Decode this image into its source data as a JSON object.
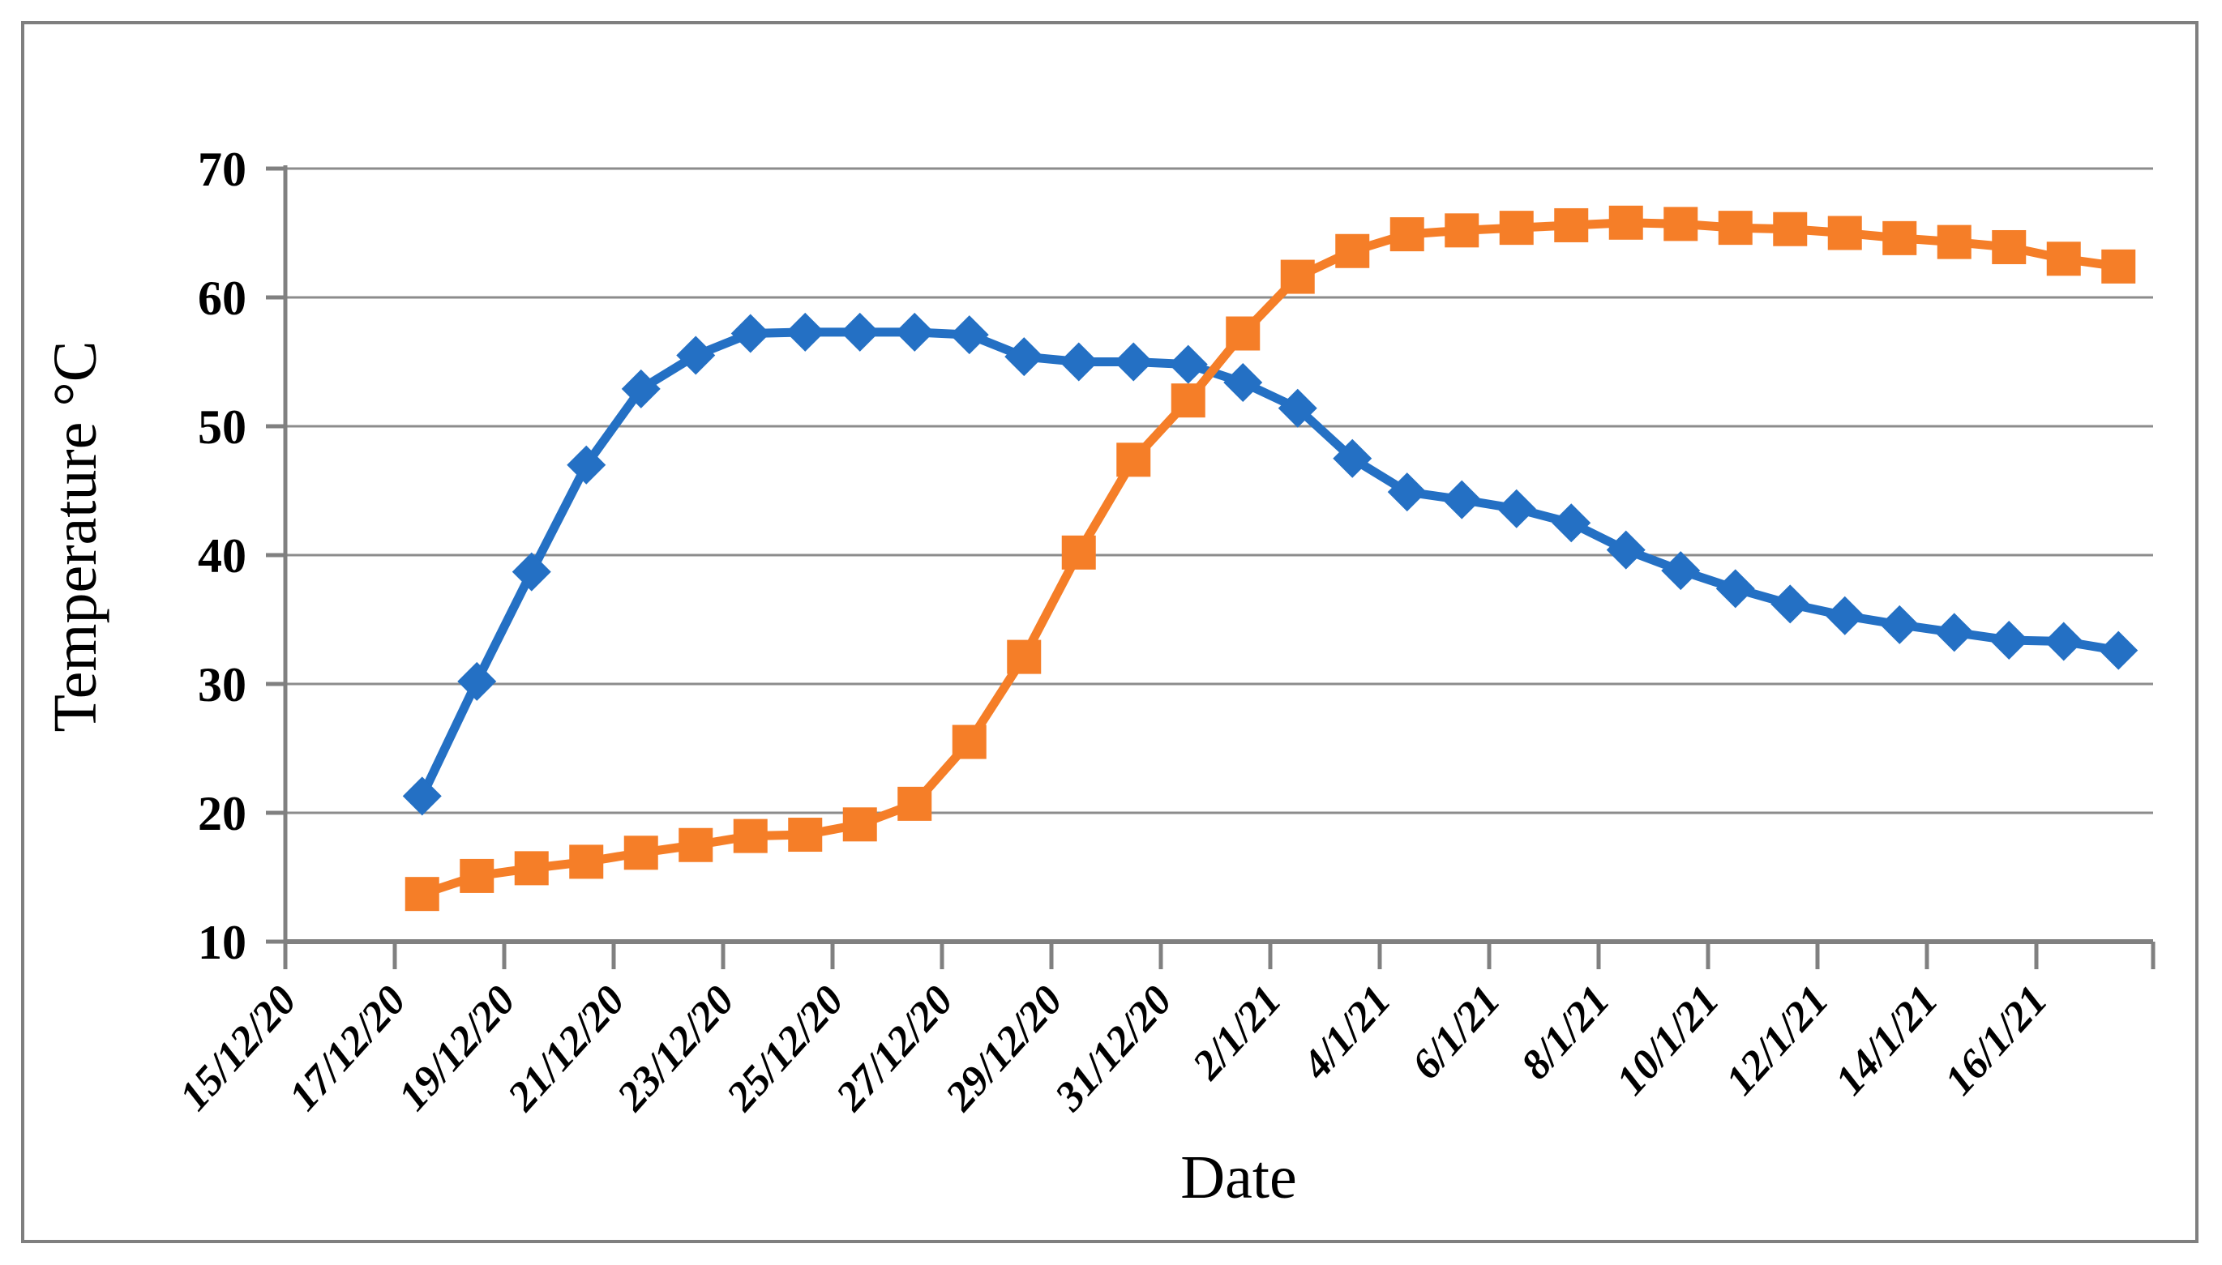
{
  "chart_data": {
    "type": "line",
    "title": "",
    "xlabel": "Date",
    "ylabel": "Temperature °C",
    "ylim": [
      10,
      70
    ],
    "y_ticks": [
      70,
      60,
      50,
      40,
      30,
      20,
      10
    ],
    "grid": "horizontal",
    "legend": "none",
    "x_tick_labels": [
      "15/12/20",
      "17/12/20",
      "19/12/20",
      "21/12/20",
      "23/12/20",
      "25/12/20",
      "27/12/20",
      "29/12/20",
      "31/12/20",
      "2/1/21",
      "4/1/21",
      "6/1/21",
      "8/1/21",
      "10/1/21",
      "12/1/21",
      "14/1/21",
      "16/1/21"
    ],
    "x": [
      "17/12/20",
      "18/12/20",
      "19/12/20",
      "20/12/20",
      "21/12/20",
      "22/12/20",
      "23/12/20",
      "24/12/20",
      "25/12/20",
      "26/12/20",
      "27/12/20",
      "28/12/20",
      "29/12/20",
      "30/12/20",
      "31/12/20",
      "1/1/21",
      "2/1/21",
      "3/1/21",
      "4/1/21",
      "5/1/21",
      "6/1/21",
      "7/1/21",
      "8/1/21",
      "9/1/21",
      "10/1/21",
      "11/1/21",
      "12/1/21",
      "13/1/21",
      "14/1/21",
      "15/1/21",
      "16/1/21",
      "17/1/21"
    ],
    "series": [
      {
        "name": "blue-diamond-series",
        "marker": "diamond",
        "color": "#2470C4",
        "values": [
          21.3,
          30.2,
          38.7,
          47.0,
          52.9,
          55.5,
          57.2,
          57.3,
          57.3,
          57.3,
          57.1,
          55.4,
          55.0,
          55.0,
          54.8,
          53.4,
          51.4,
          47.5,
          44.9,
          44.3,
          43.6,
          42.5,
          40.4,
          38.8,
          37.4,
          36.2,
          35.3,
          34.6,
          34.0,
          33.4,
          33.3,
          32.6
        ]
      },
      {
        "name": "orange-square-series",
        "marker": "square",
        "color": "#F57E28",
        "values": [
          13.7,
          15.1,
          15.7,
          16.2,
          16.9,
          17.5,
          18.2,
          18.3,
          19.1,
          20.7,
          25.5,
          32.1,
          40.2,
          47.4,
          52.0,
          57.2,
          61.6,
          63.6,
          64.9,
          65.2,
          65.4,
          65.6,
          65.8,
          65.7,
          65.4,
          65.3,
          65.0,
          64.6,
          64.3,
          63.9,
          63.0,
          62.4
        ]
      }
    ],
    "axis_color": "#808080",
    "gridline_color": "#8c8c8c"
  }
}
